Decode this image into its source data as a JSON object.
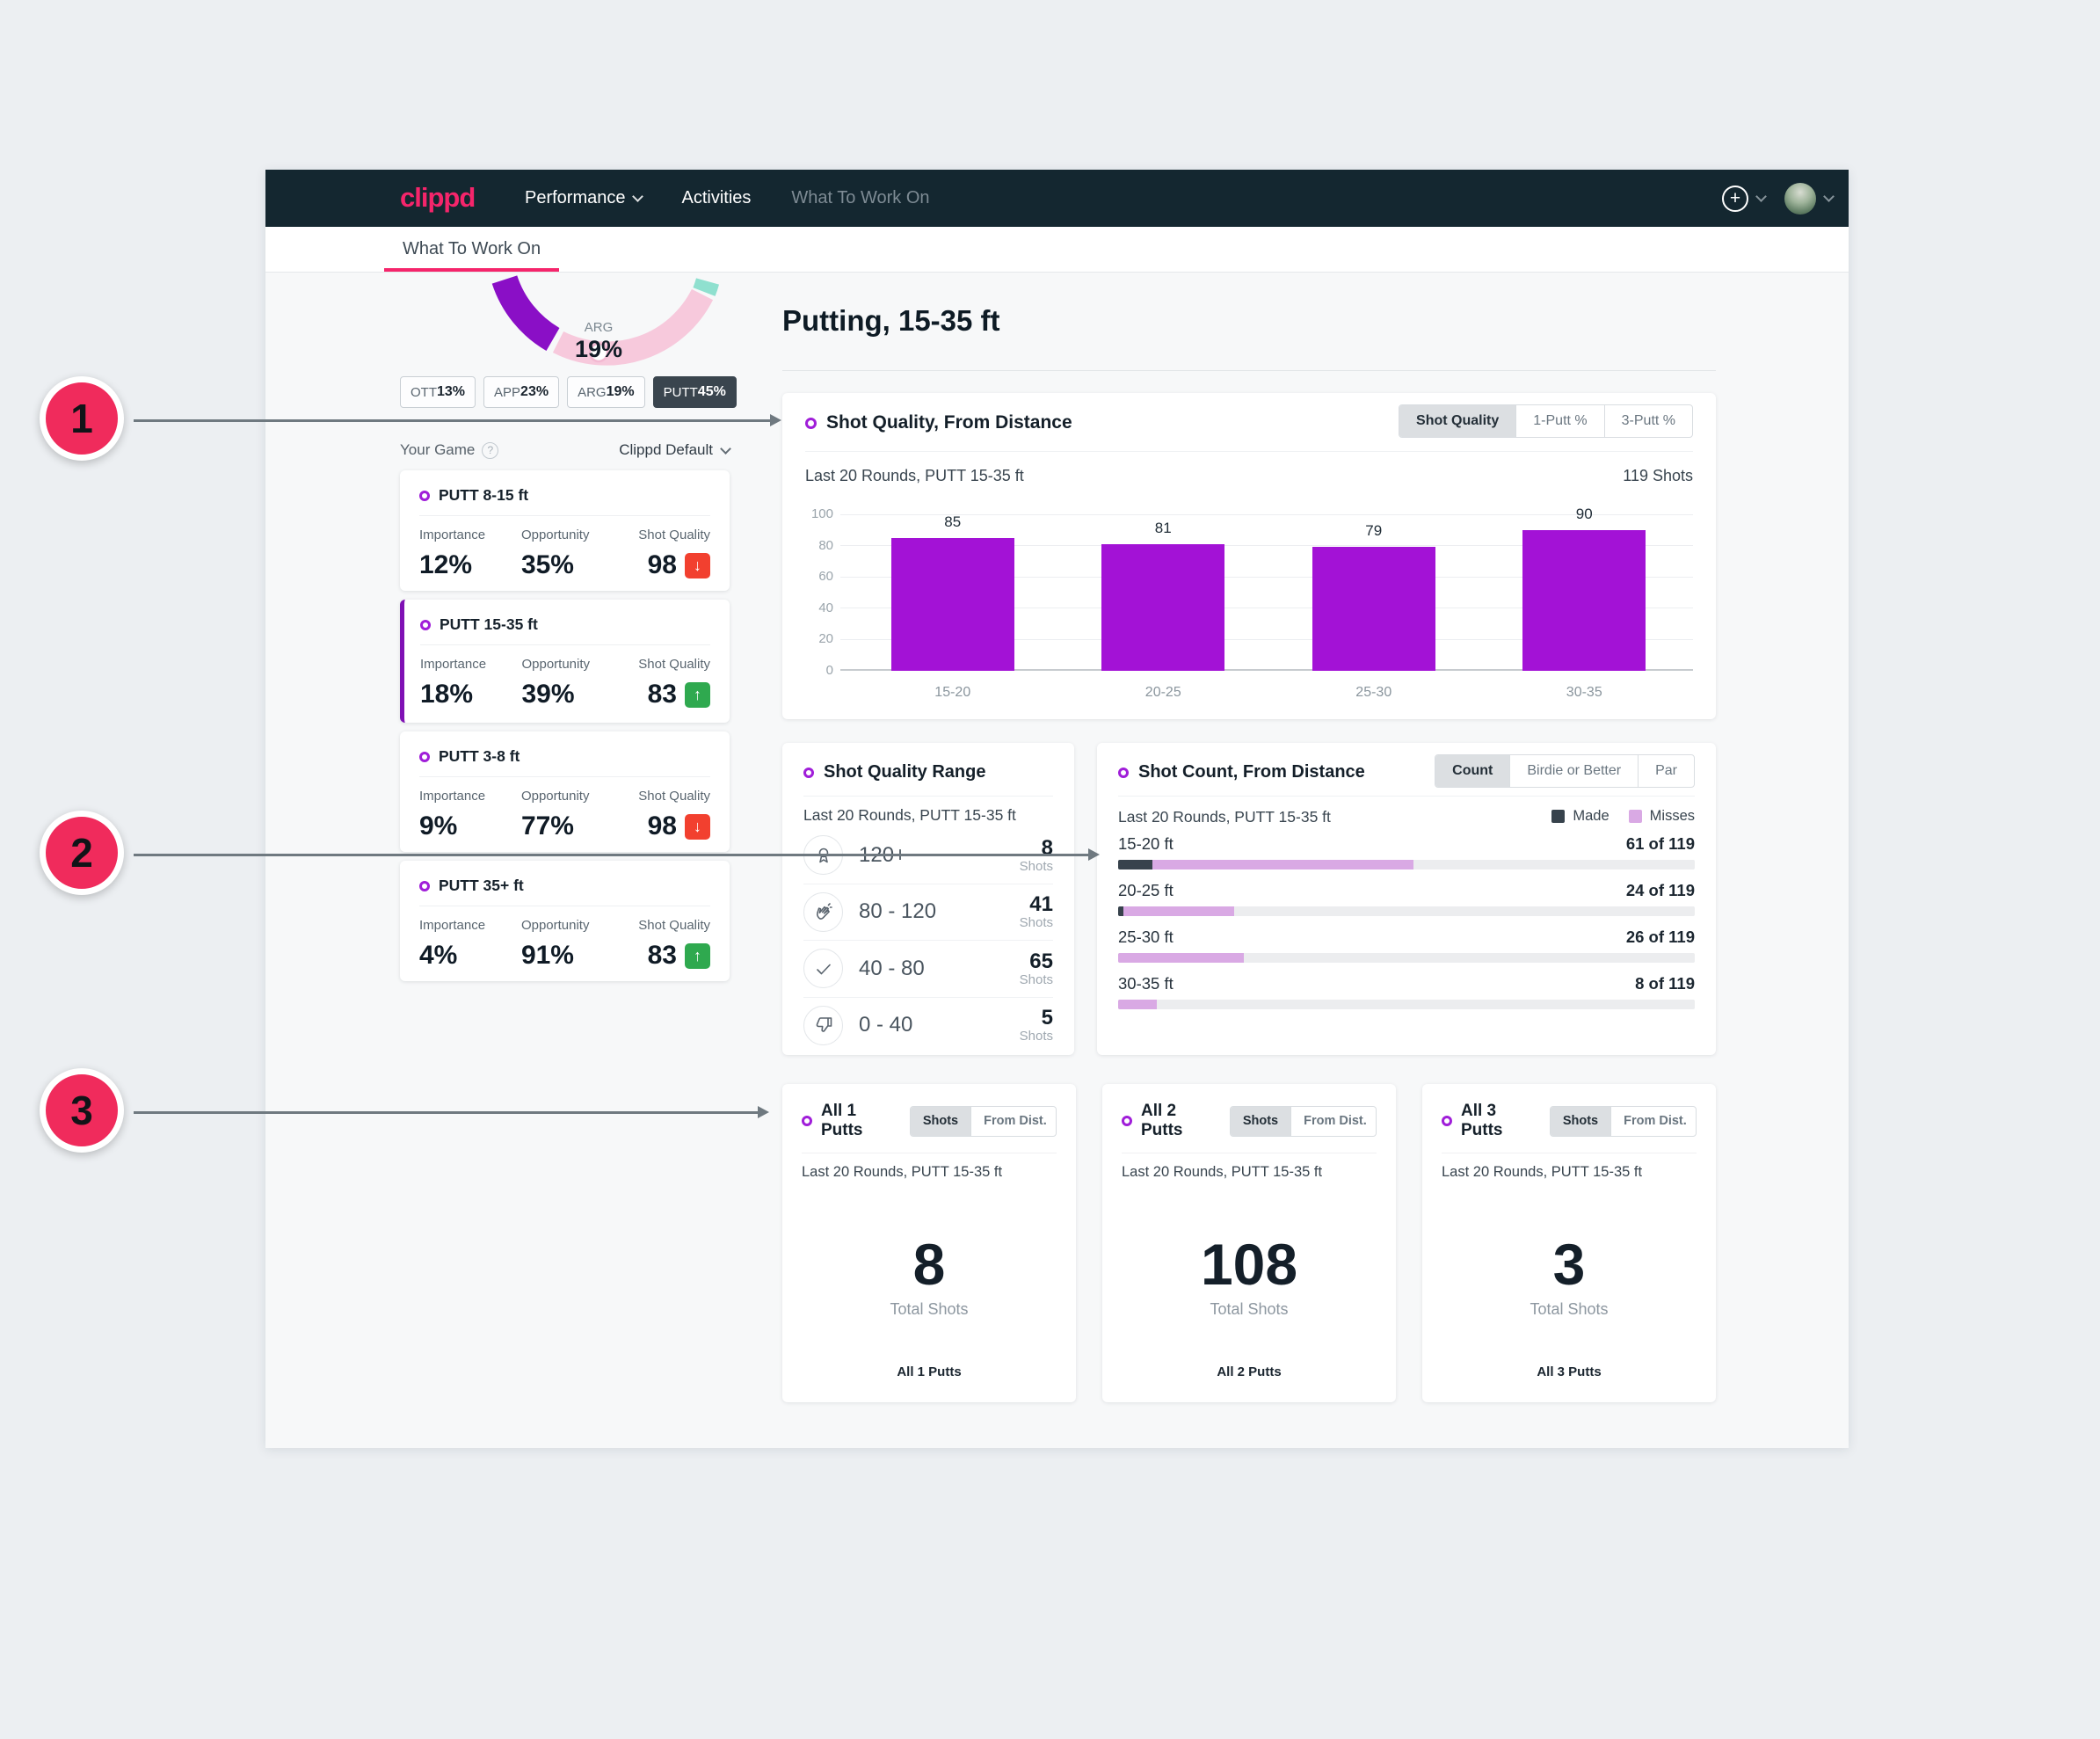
{
  "colors": {
    "brand_pink": "#F5256B",
    "navbar_bg": "#142730",
    "accent_purple": "#A312D6",
    "selected_border_purple": "#7F10B4",
    "made_dark": "#37424C",
    "misses_purple": "#D9A9E4",
    "trend_up_green": "#2FA94F",
    "trend_down_red": "#F2402F",
    "annotation_pink": "#F02B5C",
    "gauge_pink": "#F7C9DC",
    "gauge_purple": "#8A0FC6",
    "gauge_teal": "#8FE0CF"
  },
  "navbar": {
    "logo": "clippd",
    "items": [
      {
        "label": "Performance",
        "has_chevron": true,
        "muted": false
      },
      {
        "label": "Activities",
        "has_chevron": false,
        "muted": false
      },
      {
        "label": "What To Work On",
        "has_chevron": false,
        "muted": true
      }
    ]
  },
  "tabbar": {
    "active_tab": "What To Work On"
  },
  "sidebar": {
    "gauge": {
      "label": "ARG",
      "value": "19%"
    },
    "chips": [
      {
        "label": "OTT",
        "value": "13%",
        "selected": false
      },
      {
        "label": "APP",
        "value": "23%",
        "selected": false
      },
      {
        "label": "ARG",
        "value": "19%",
        "selected": false
      },
      {
        "label": "PUTT",
        "value": "45%",
        "selected": true
      }
    ],
    "your_game": {
      "label": "Your Game",
      "preset": "Clippd Default"
    },
    "stat_labels": {
      "importance": "Importance",
      "opportunity": "Opportunity",
      "shot_quality": "Shot Quality"
    },
    "cards": [
      {
        "title": "PUTT 8-15 ft",
        "importance": "12%",
        "opportunity": "35%",
        "shot_quality": "98",
        "trend": "down",
        "selected": false
      },
      {
        "title": "PUTT 15-35 ft",
        "importance": "18%",
        "opportunity": "39%",
        "shot_quality": "83",
        "trend": "up",
        "selected": true
      },
      {
        "title": "PUTT 3-8 ft",
        "importance": "9%",
        "opportunity": "77%",
        "shot_quality": "98",
        "trend": "down",
        "selected": false
      },
      {
        "title": "PUTT 35+ ft",
        "importance": "4%",
        "opportunity": "91%",
        "shot_quality": "83",
        "trend": "up",
        "selected": false
      }
    ]
  },
  "main": {
    "heading": "Putting, 15-35 ft",
    "shot_quality_card": {
      "title": "Shot Quality, From Distance",
      "tabs": [
        "Shot Quality",
        "1-Putt %",
        "3-Putt %"
      ],
      "active_tab": "Shot Quality",
      "subtitle": "Last 20 Rounds, PUTT 15-35 ft",
      "shots_total": "119 Shots"
    },
    "quality_range_card": {
      "title": "Shot Quality Range",
      "subtitle": "Last 20 Rounds, PUTT 15-35 ft",
      "rows": [
        {
          "icon": "medal-icon",
          "range": "120+",
          "count": "8",
          "unit": "Shots"
        },
        {
          "icon": "clap-icon",
          "range": "80 - 120",
          "count": "41",
          "unit": "Shots"
        },
        {
          "icon": "check-icon",
          "range": "40 - 80",
          "count": "65",
          "unit": "Shots"
        },
        {
          "icon": "thumbs-down-icon",
          "range": "0 - 40",
          "count": "5",
          "unit": "Shots"
        }
      ]
    },
    "shot_count_card": {
      "title": "Shot Count, From Distance",
      "tabs": [
        "Count",
        "Birdie or Better",
        "Par"
      ],
      "active_tab": "Count",
      "subtitle": "Last 20 Rounds, PUTT 15-35 ft",
      "legend": [
        {
          "label": "Made",
          "color": "#37424C"
        },
        {
          "label": "Misses",
          "color": "#D9A9E4"
        }
      ]
    },
    "putt_cards": [
      {
        "title": "All 1 Putts",
        "tabs": [
          "Shots",
          "From Dist."
        ],
        "active_tab": "Shots",
        "subtitle": "Last 20 Rounds, PUTT 15-35 ft",
        "total": "8",
        "total_label": "Total Shots",
        "footer": "All 1 Putts"
      },
      {
        "title": "All 2 Putts",
        "tabs": [
          "Shots",
          "From Dist."
        ],
        "active_tab": "Shots",
        "subtitle": "Last 20 Rounds, PUTT 15-35 ft",
        "total": "108",
        "total_label": "Total Shots",
        "footer": "All 2 Putts"
      },
      {
        "title": "All 3 Putts",
        "tabs": [
          "Shots",
          "From Dist."
        ],
        "active_tab": "Shots",
        "subtitle": "Last 20 Rounds, PUTT 15-35 ft",
        "total": "3",
        "total_label": "Total Shots",
        "footer": "All 3 Putts"
      }
    ]
  },
  "annotations": [
    {
      "number": "1"
    },
    {
      "number": "2"
    },
    {
      "number": "3"
    }
  ],
  "chart_data": [
    {
      "type": "bar",
      "title": "Shot Quality, From Distance",
      "categories": [
        "15-20",
        "20-25",
        "25-30",
        "30-35"
      ],
      "values": [
        85,
        81,
        79,
        90
      ],
      "xlabel": "",
      "ylabel": "",
      "ylim": [
        0,
        100
      ],
      "yticks": [
        0,
        20,
        40,
        60,
        80,
        100
      ],
      "grid": true,
      "bar_color": "#A312D6",
      "legend_position": "none"
    },
    {
      "type": "bar",
      "orientation": "horizontal-stacked",
      "title": "Shot Count, From Distance",
      "categories": [
        "15-20 ft",
        "20-25 ft",
        "25-30 ft",
        "30-35 ft"
      ],
      "series": [
        {
          "name": "Made",
          "values": [
            7,
            1,
            0,
            0
          ],
          "color": "#37424C"
        },
        {
          "name": "Misses",
          "values": [
            54,
            23,
            26,
            8
          ],
          "color": "#D9A9E4"
        }
      ],
      "labels": [
        "61 of 119",
        "24 of 119",
        "26 of 119",
        "8 of 119"
      ],
      "total": 119
    }
  ]
}
